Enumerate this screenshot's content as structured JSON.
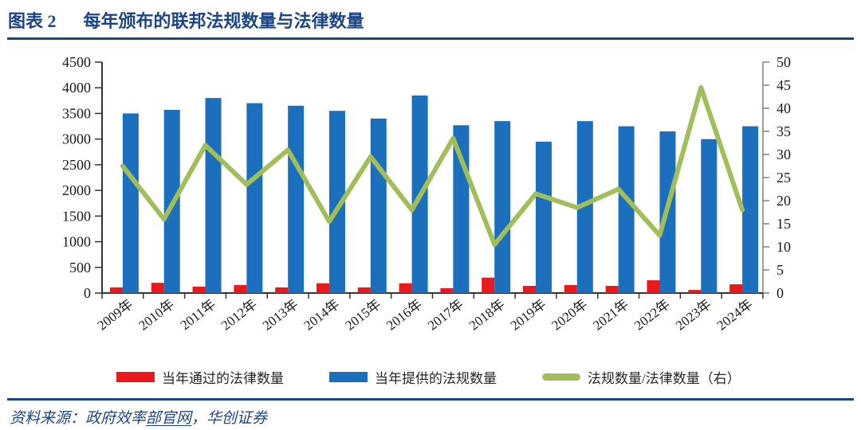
{
  "header": {
    "figure_label": "图表 2",
    "title": "每年颁布的联邦法规数量与法律数量"
  },
  "chart_data": {
    "type": "bar",
    "subtype": "clustered-bars-with-line-overlay",
    "categories": [
      "2009年",
      "2010年",
      "2011年",
      "2012年",
      "2013年",
      "2014年",
      "2015年",
      "2016年",
      "2017年",
      "2018年",
      "2019年",
      "2020年",
      "2021年",
      "2022年",
      "2023年",
      "2024年"
    ],
    "series": [
      {
        "name": "当年通过的法律数量",
        "type": "bar",
        "axis": "left",
        "color": "#e9191d",
        "values": [
          110,
          200,
          125,
          155,
          110,
          190,
          110,
          190,
          95,
          300,
          140,
          155,
          140,
          250,
          60,
          170
        ]
      },
      {
        "name": "当年提供的法规数量",
        "type": "bar",
        "axis": "left",
        "color": "#1b6fbc",
        "values": [
          3500,
          3570,
          3800,
          3700,
          3650,
          3550,
          3400,
          3850,
          3270,
          3350,
          2950,
          3350,
          3250,
          3150,
          3000,
          3250
        ]
      },
      {
        "name": "法规数量/法律数量（右）",
        "type": "line",
        "axis": "right",
        "color": "#a2be5a",
        "values": [
          27.5,
          16,
          32,
          23.5,
          31,
          15.5,
          29.5,
          18,
          33.5,
          10.5,
          21.5,
          18.5,
          22.5,
          12.5,
          44.5,
          18
        ]
      }
    ],
    "left_axis": {
      "min": 0,
      "max": 4500,
      "step": 500
    },
    "right_axis": {
      "min": 0,
      "max": 50,
      "step": 5
    },
    "grid": false,
    "legend_position": "bottom"
  },
  "footer": {
    "source_prefix": "资料来源：政府效率",
    "source_link": "部官网",
    "source_suffix": "，华创证券"
  }
}
